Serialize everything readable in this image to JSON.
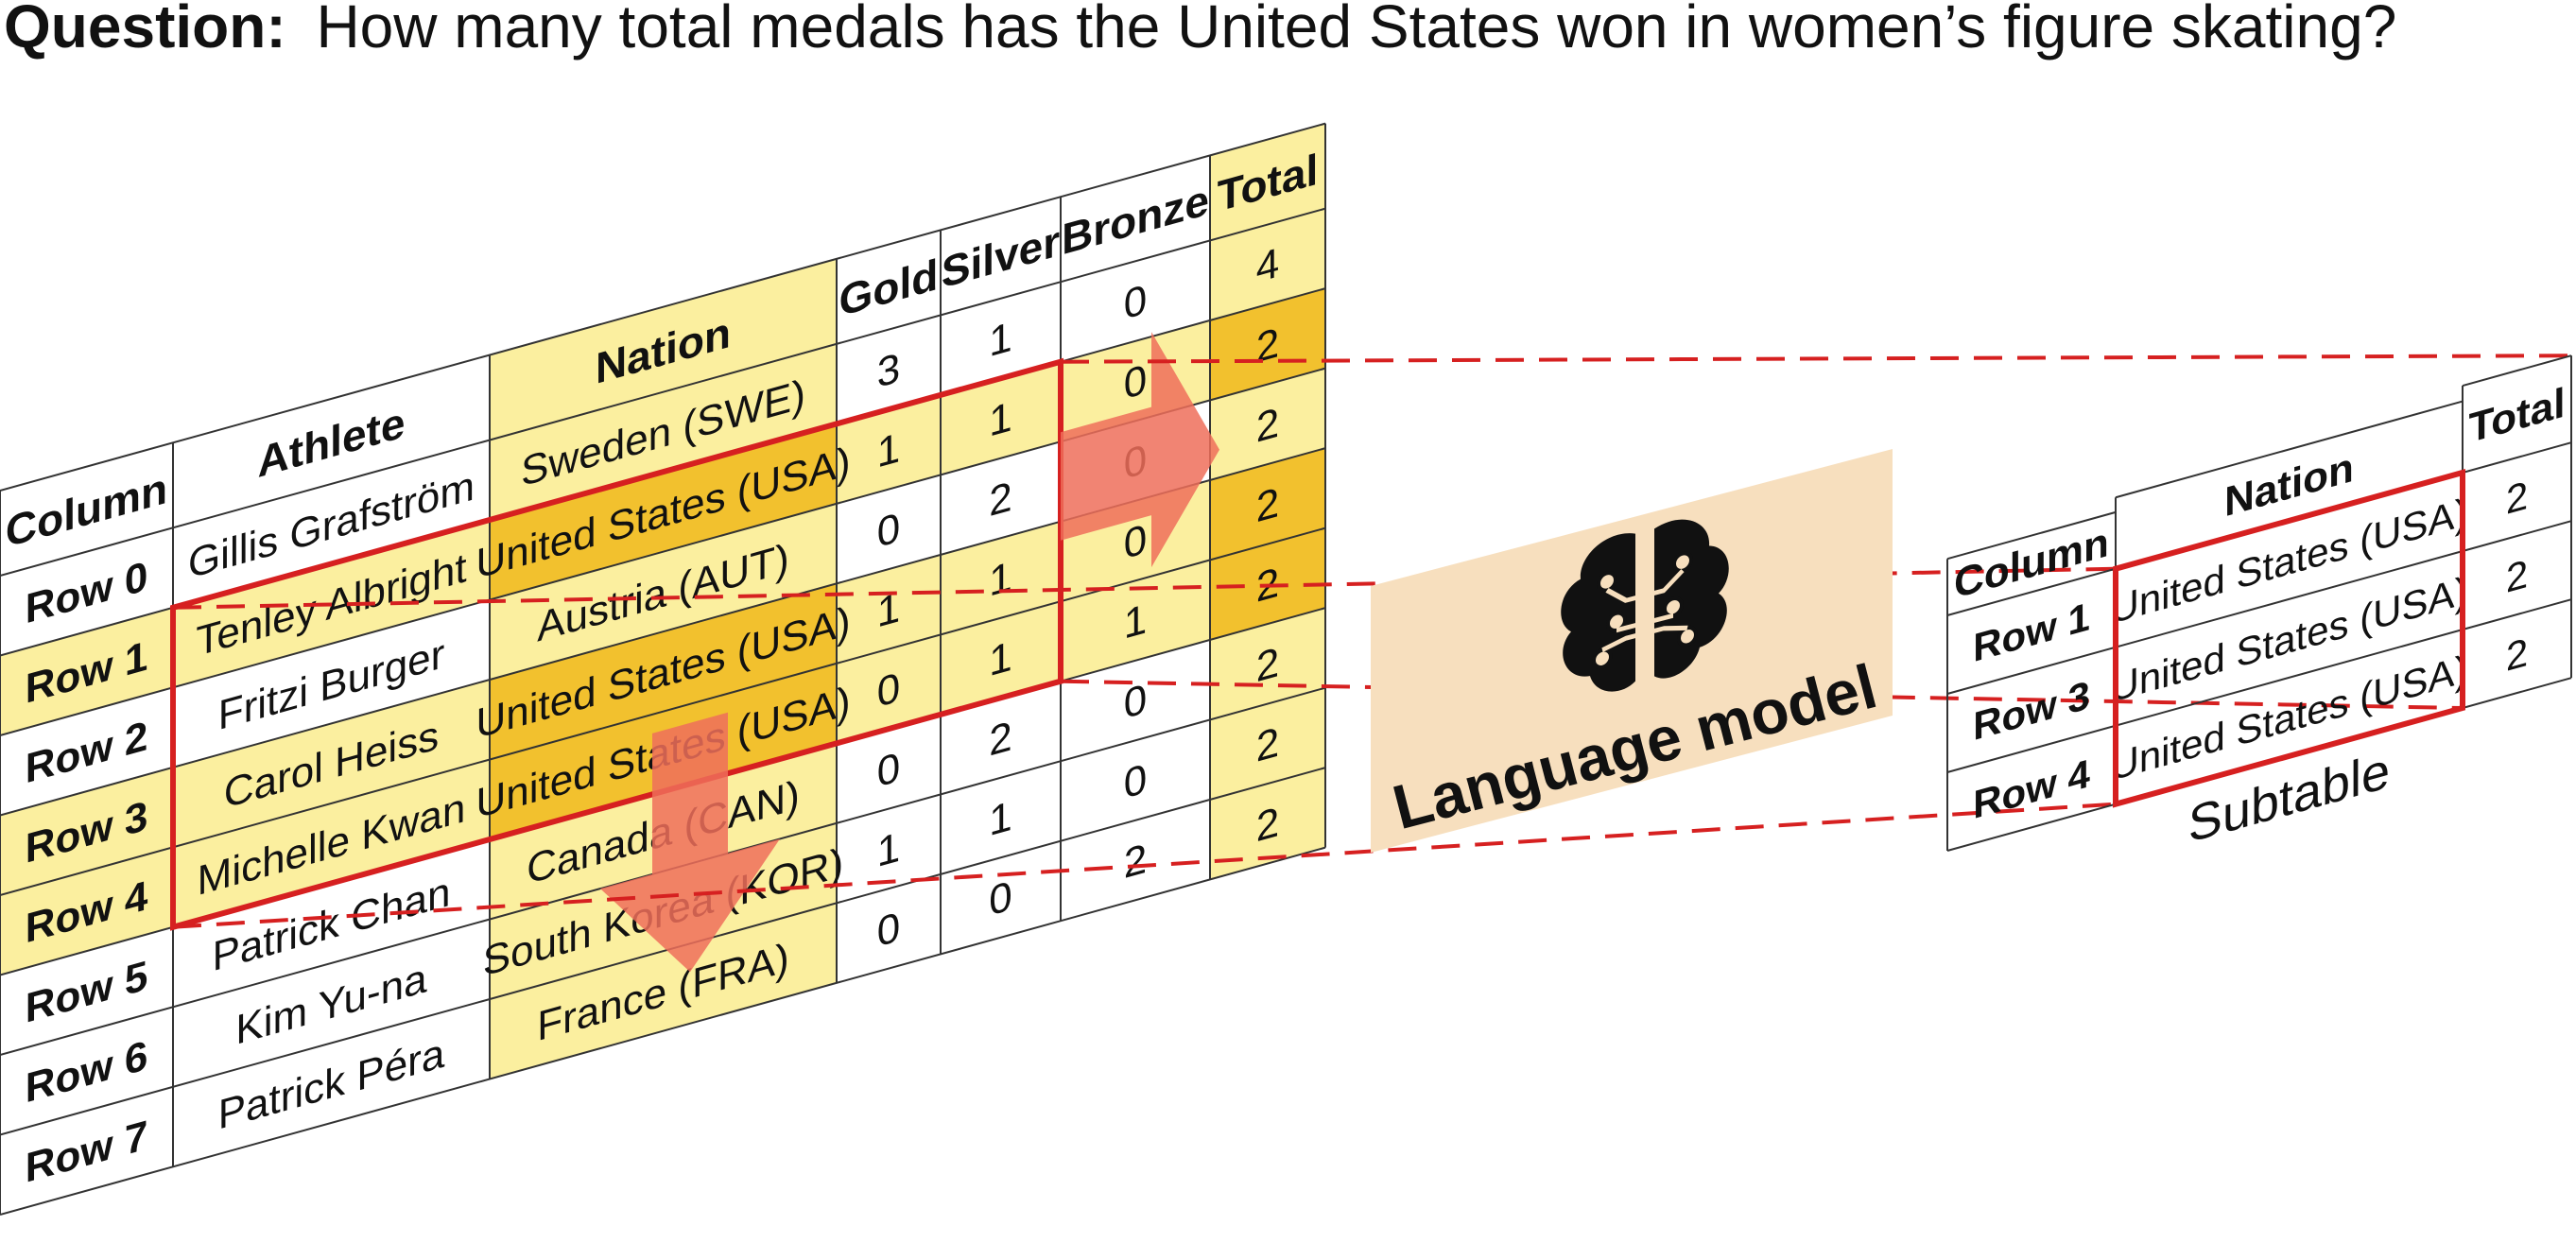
{
  "question": {
    "label": "Question:",
    "text": "How many total medals has the United States won in women’s figure skating?"
  },
  "source_table": {
    "headers": [
      "Column",
      "Athlete",
      "Nation",
      "Gold",
      "Silver",
      "Bronze",
      "Total"
    ],
    "rows": [
      [
        "Row 0",
        "Gillis Grafström",
        "Sweden (SWE)",
        "3",
        "1",
        "0",
        "4"
      ],
      [
        "Row 1",
        "Tenley Albright",
        "United States (USA)",
        "1",
        "1",
        "0",
        "2"
      ],
      [
        "Row 2",
        "Fritzi Burger",
        "Austria (AUT)",
        "0",
        "2",
        "0",
        "2"
      ],
      [
        "Row 3",
        "Carol Heiss",
        "United States (USA)",
        "1",
        "1",
        "0",
        "2"
      ],
      [
        "Row 4",
        "Michelle Kwan",
        "United States (USA)",
        "0",
        "1",
        "1",
        "2"
      ],
      [
        "Row 5",
        "Patrick Chan",
        "Canada (CAN)",
        "0",
        "2",
        "0",
        "2"
      ],
      [
        "Row 6",
        "Kim Yu-na",
        "South Korea (KOR)",
        "1",
        "1",
        "0",
        "2"
      ],
      [
        "Row 7",
        "Patrick Péra",
        "France (FRA)",
        "0",
        "0",
        "2",
        "2"
      ]
    ],
    "selected_rows": [
      1,
      3,
      4
    ],
    "selected_columns": [
      2,
      6
    ]
  },
  "model": {
    "label": "Language model",
    "icon": "brain-circuit-icon"
  },
  "subtable": {
    "caption": "Subtable",
    "headers": [
      "Column",
      "Nation",
      "Total"
    ],
    "rows": [
      [
        "Row 1",
        "United States (USA)",
        "2"
      ],
      [
        "Row 3",
        "United States (USA)",
        "2"
      ],
      [
        "Row 4",
        "United States (USA)",
        "2"
      ]
    ]
  },
  "colors": {
    "highlight_light": "#fbef9f",
    "highlight_dark": "#f2c12e",
    "selection_red": "#d62020",
    "arrow_salmon": "#ef6f5a",
    "model_panel": "#f7dfbe",
    "grid_line": "#333333"
  }
}
